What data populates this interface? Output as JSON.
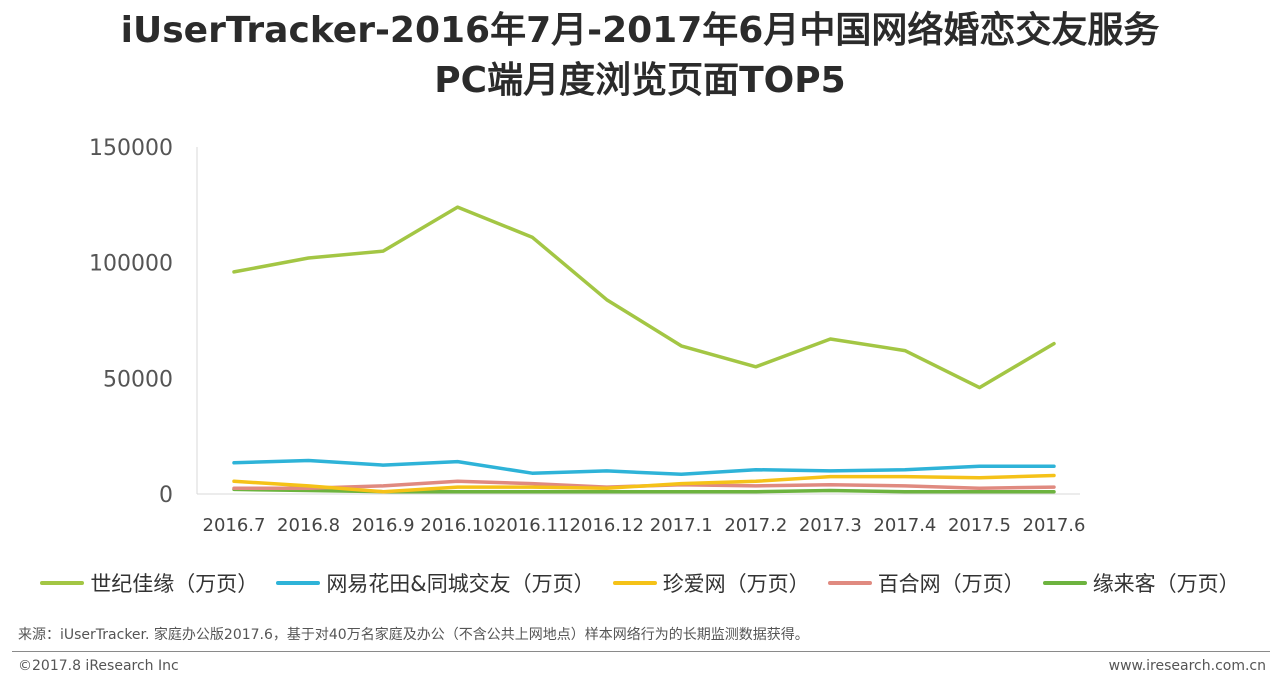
{
  "title_line1": "iUserTracker-2016年7月-2017年6月中国网络婚恋交友服务",
  "title_line2": "PC端月度浏览页面TOP5",
  "source_note": "来源：iUserTracker. 家庭办公版2017.6，基于对40万名家庭及办公（不含公共上网地点）样本网络行为的长期监测数据获得。",
  "copyright": "©2017.8 iResearch Inc",
  "website": "www.iresearch.com.cn",
  "chart_data": {
    "type": "line",
    "title": "iUserTracker-2016年7月-2017年6月中国网络婚恋交友服务 PC端月度浏览页面TOP5",
    "xlabel": "",
    "ylabel": "",
    "categories": [
      "2016.7",
      "2016.8",
      "2016.9",
      "2016.10",
      "2016.11",
      "2016.12",
      "2017.1",
      "2017.2",
      "2017.3",
      "2017.4",
      "2017.5",
      "2017.6"
    ],
    "ylim": [
      0,
      150000
    ],
    "yticks": [
      0,
      50000,
      100000,
      150000
    ],
    "yticklabels": [
      "0",
      "50000",
      "100000",
      "150000"
    ],
    "grid": false,
    "legend_position": "bottom",
    "series": [
      {
        "name": "世纪佳缘（万页）",
        "color": "#a3c644",
        "values": [
          96000,
          102000,
          105000,
          124000,
          111000,
          84000,
          64000,
          55000,
          67000,
          62000,
          46000,
          65000
        ]
      },
      {
        "name": "网易花田&同城交友（万页）",
        "color": "#2eb3d8",
        "values": [
          13500,
          14500,
          12500,
          14000,
          9000,
          10000,
          8500,
          10500,
          10000,
          10500,
          12000,
          12000
        ]
      },
      {
        "name": "珍爱网（万页）",
        "color": "#f5c218",
        "values": [
          5500,
          3500,
          1000,
          3000,
          3000,
          2500,
          4500,
          5500,
          7500,
          7500,
          7000,
          8000
        ]
      },
      {
        "name": "百合网（万页）",
        "color": "#e08a80",
        "values": [
          2500,
          2500,
          3500,
          5500,
          4500,
          3000,
          4000,
          3500,
          4000,
          3500,
          2500,
          3000
        ]
      },
      {
        "name": "缘来客（万页）",
        "color": "#6db33f",
        "values": [
          2000,
          1500,
          1000,
          1000,
          1000,
          1000,
          1000,
          1000,
          1500,
          1000,
          1000,
          1000
        ]
      }
    ]
  }
}
